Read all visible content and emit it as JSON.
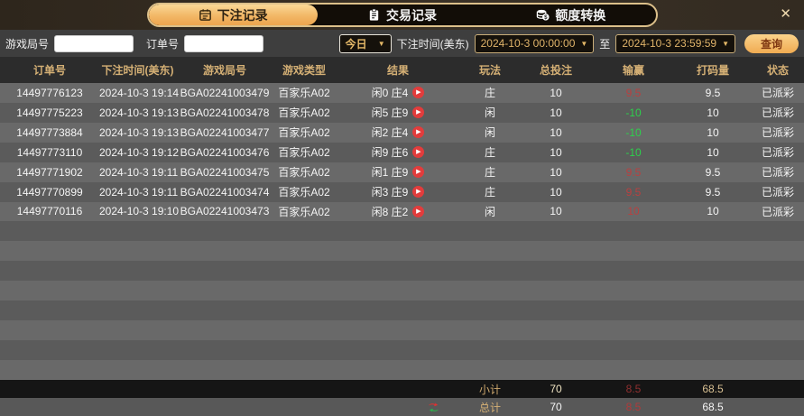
{
  "colors": {
    "accent_gold": "#f2b766",
    "win_red": "#b84040",
    "loss_green": "#2dd14c",
    "header_gold": "#d5b075"
  },
  "topbar": {
    "tabs": [
      {
        "label": "下注记录",
        "icon": "ledger-icon",
        "active": true
      },
      {
        "label": "交易记录",
        "icon": "clipboard-icon",
        "active": false
      },
      {
        "label": "额度转换",
        "icon": "coins-icon",
        "active": false
      }
    ],
    "close_label": "✕"
  },
  "filters": {
    "game_round_label": "游戏局号",
    "order_no_label": "订单号",
    "quick_range_value": "今日",
    "bet_time_label": "下注时间(美东)",
    "start_time": "2024-10-3 00:00:00",
    "to_label": "至",
    "end_time": "2024-10-3 23:59:59",
    "query_label": "查询",
    "dropdown_arrow": "▼"
  },
  "table": {
    "headers": [
      "订单号",
      "下注时间(美东)",
      "游戏局号",
      "游戏类型",
      "结果",
      "玩法",
      "总投注",
      "输赢",
      "打码量",
      "状态"
    ],
    "rows": [
      {
        "order": "14497776123",
        "time": "2024-10-3 19:14",
        "round": "BGA02241003479",
        "game": "百家乐A02",
        "result": "闲0 庄4",
        "play": "庄",
        "bet": "10",
        "winloss": "9.5",
        "volume": "9.5",
        "status": "已派彩"
      },
      {
        "order": "14497775223",
        "time": "2024-10-3 19:13",
        "round": "BGA02241003478",
        "game": "百家乐A02",
        "result": "闲5 庄9",
        "play": "闲",
        "bet": "10",
        "winloss": "-10",
        "volume": "10",
        "status": "已派彩"
      },
      {
        "order": "14497773884",
        "time": "2024-10-3 19:13",
        "round": "BGA02241003477",
        "game": "百家乐A02",
        "result": "闲2 庄4",
        "play": "闲",
        "bet": "10",
        "winloss": "-10",
        "volume": "10",
        "status": "已派彩"
      },
      {
        "order": "14497773110",
        "time": "2024-10-3 19:12",
        "round": "BGA02241003476",
        "game": "百家乐A02",
        "result": "闲9 庄6",
        "play": "庄",
        "bet": "10",
        "winloss": "-10",
        "volume": "10",
        "status": "已派彩"
      },
      {
        "order": "14497771902",
        "time": "2024-10-3 19:11",
        "round": "BGA02241003475",
        "game": "百家乐A02",
        "result": "闲1 庄9",
        "play": "庄",
        "bet": "10",
        "winloss": "9.5",
        "volume": "9.5",
        "status": "已派彩"
      },
      {
        "order": "14497770899",
        "time": "2024-10-3 19:11",
        "round": "BGA02241003474",
        "game": "百家乐A02",
        "result": "闲3 庄9",
        "play": "庄",
        "bet": "10",
        "winloss": "9.5",
        "volume": "9.5",
        "status": "已派彩"
      },
      {
        "order": "14497770116",
        "time": "2024-10-3 19:10",
        "round": "BGA02241003473",
        "game": "百家乐A02",
        "result": "闲8 庄2",
        "play": "闲",
        "bet": "10",
        "winloss": "10",
        "volume": "10",
        "status": "已派彩"
      }
    ],
    "play_icon_glyph": "▶",
    "subtotal": {
      "label": "小计",
      "bet": "70",
      "winloss": "8.5",
      "volume": "68.5"
    },
    "total": {
      "label": "总计",
      "bet": "70",
      "winloss": "8.5",
      "volume": "68.5",
      "icon": "swap-arrows-icon"
    }
  }
}
